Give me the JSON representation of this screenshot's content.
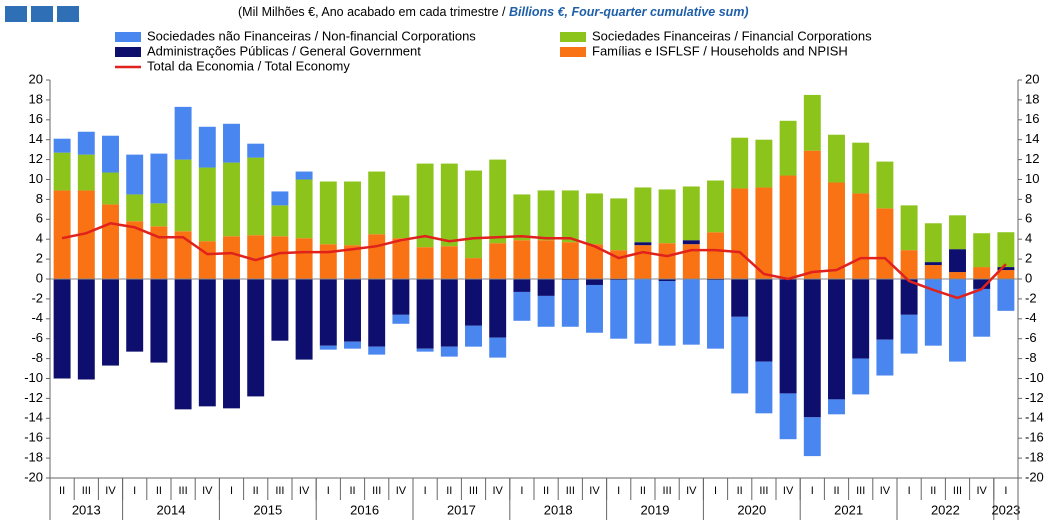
{
  "chart_data": {
    "type": "bar",
    "stacked": true,
    "subtitle_pt": "(Mil Milhões €, Ano acabado em cada trimestre / ",
    "subtitle_en": "Billions €, Four-quarter cumulative sum)",
    "categories": [
      "II",
      "III",
      "IV",
      "I",
      "II",
      "III",
      "IV",
      "I",
      "II",
      "III",
      "IV",
      "I",
      "II",
      "III",
      "IV",
      "I",
      "II",
      "III",
      "IV",
      "I",
      "II",
      "III",
      "IV",
      "I",
      "II",
      "III",
      "IV",
      "I",
      "II",
      "III",
      "IV",
      "I",
      "II",
      "III",
      "IV",
      "I",
      "II",
      "III",
      "IV",
      "I"
    ],
    "years": [
      "2013",
      "2014",
      "2015",
      "2016",
      "2017",
      "2018",
      "2019",
      "2020",
      "2021",
      "2022",
      "2023"
    ],
    "series": [
      {
        "name": "Sociedades não Financeiras / Non-financial Corporations",
        "color": "#4a86f0",
        "values": [
          1.4,
          2.3,
          3.7,
          4.0,
          5.0,
          5.3,
          4.1,
          3.9,
          1.4,
          1.4,
          0.8,
          -0.4,
          -0.7,
          -0.8,
          -0.9,
          -0.3,
          -1.0,
          -2.1,
          -2.0,
          -2.9,
          -3.1,
          -4.7,
          -4.8,
          -5.9,
          -6.5,
          -6.5,
          -6.6,
          -6.9,
          -7.7,
          -5.2,
          -4.6,
          -3.9,
          -1.5,
          -3.6,
          -3.6,
          -3.9,
          -6.7,
          -8.3,
          -4.8,
          -3.2
        ]
      },
      {
        "name": "Sociedades Financeiras / Financial Corporations",
        "color": "#8cc41c",
        "values": [
          3.8,
          3.6,
          3.2,
          2.7,
          2.3,
          7.2,
          7.4,
          7.4,
          7.8,
          3.1,
          5.9,
          6.3,
          6.4,
          6.3,
          4.3,
          8.4,
          8.3,
          8.8,
          8.4,
          4.6,
          5.0,
          5.2,
          5.1,
          5.2,
          5.5,
          5.4,
          5.4,
          5.2,
          5.1,
          4.8,
          5.5,
          5.6,
          4.8,
          5.1,
          4.7,
          4.5,
          3.9,
          3.4,
          3.4,
          3.5
        ]
      },
      {
        "name": "Administrações Públicas / General Government",
        "color": "#0e0e6e",
        "values": [
          -10.0,
          -10.1,
          -8.7,
          -7.3,
          -8.4,
          -13.1,
          -12.8,
          -13.0,
          -11.8,
          -6.2,
          -8.1,
          -6.7,
          -6.3,
          -6.8,
          -3.6,
          -7.0,
          -6.8,
          -4.7,
          -5.9,
          -1.3,
          -1.7,
          -0.1,
          -0.6,
          -0.1,
          0.3,
          -0.2,
          0.4,
          -0.1,
          -3.8,
          -8.3,
          -11.5,
          -13.9,
          -12.1,
          -8.0,
          -6.1,
          -3.6,
          0.3,
          2.3,
          -1.0,
          0.3
        ]
      },
      {
        "name": "Famílias e ISFLSF / Households and NPISH",
        "color": "#f97314",
        "values": [
          8.9,
          8.9,
          7.5,
          5.8,
          5.3,
          4.8,
          3.8,
          4.3,
          4.4,
          4.3,
          4.1,
          3.5,
          3.4,
          4.5,
          4.1,
          3.2,
          3.3,
          2.1,
          3.6,
          3.9,
          3.9,
          3.7,
          3.5,
          2.9,
          3.4,
          3.6,
          3.5,
          4.7,
          9.1,
          9.2,
          10.4,
          12.9,
          9.7,
          8.6,
          7.1,
          2.9,
          1.4,
          0.7,
          1.2,
          0.9
        ]
      }
    ],
    "line": {
      "name": "Total da Economia / Total Economy",
      "color": "#e0211c",
      "values": [
        4.1,
        4.6,
        5.6,
        5.2,
        4.2,
        4.2,
        2.5,
        2.6,
        1.9,
        2.6,
        2.7,
        2.7,
        3.0,
        3.3,
        3.9,
        4.3,
        3.8,
        4.1,
        4.2,
        4.3,
        4.1,
        4.1,
        3.3,
        2.1,
        2.7,
        2.3,
        2.9,
        2.9,
        2.7,
        0.5,
        0.0,
        0.7,
        0.9,
        2.1,
        2.1,
        -0.2,
        -1.1,
        -1.9,
        -1.0,
        1.5
      ]
    },
    "ylim": [
      -20,
      20
    ],
    "yticks": [
      -20,
      -18,
      -16,
      -14,
      -12,
      -10,
      -8,
      -6,
      -4,
      -2,
      0,
      2,
      4,
      6,
      8,
      10,
      12,
      14,
      16,
      18,
      20
    ]
  }
}
